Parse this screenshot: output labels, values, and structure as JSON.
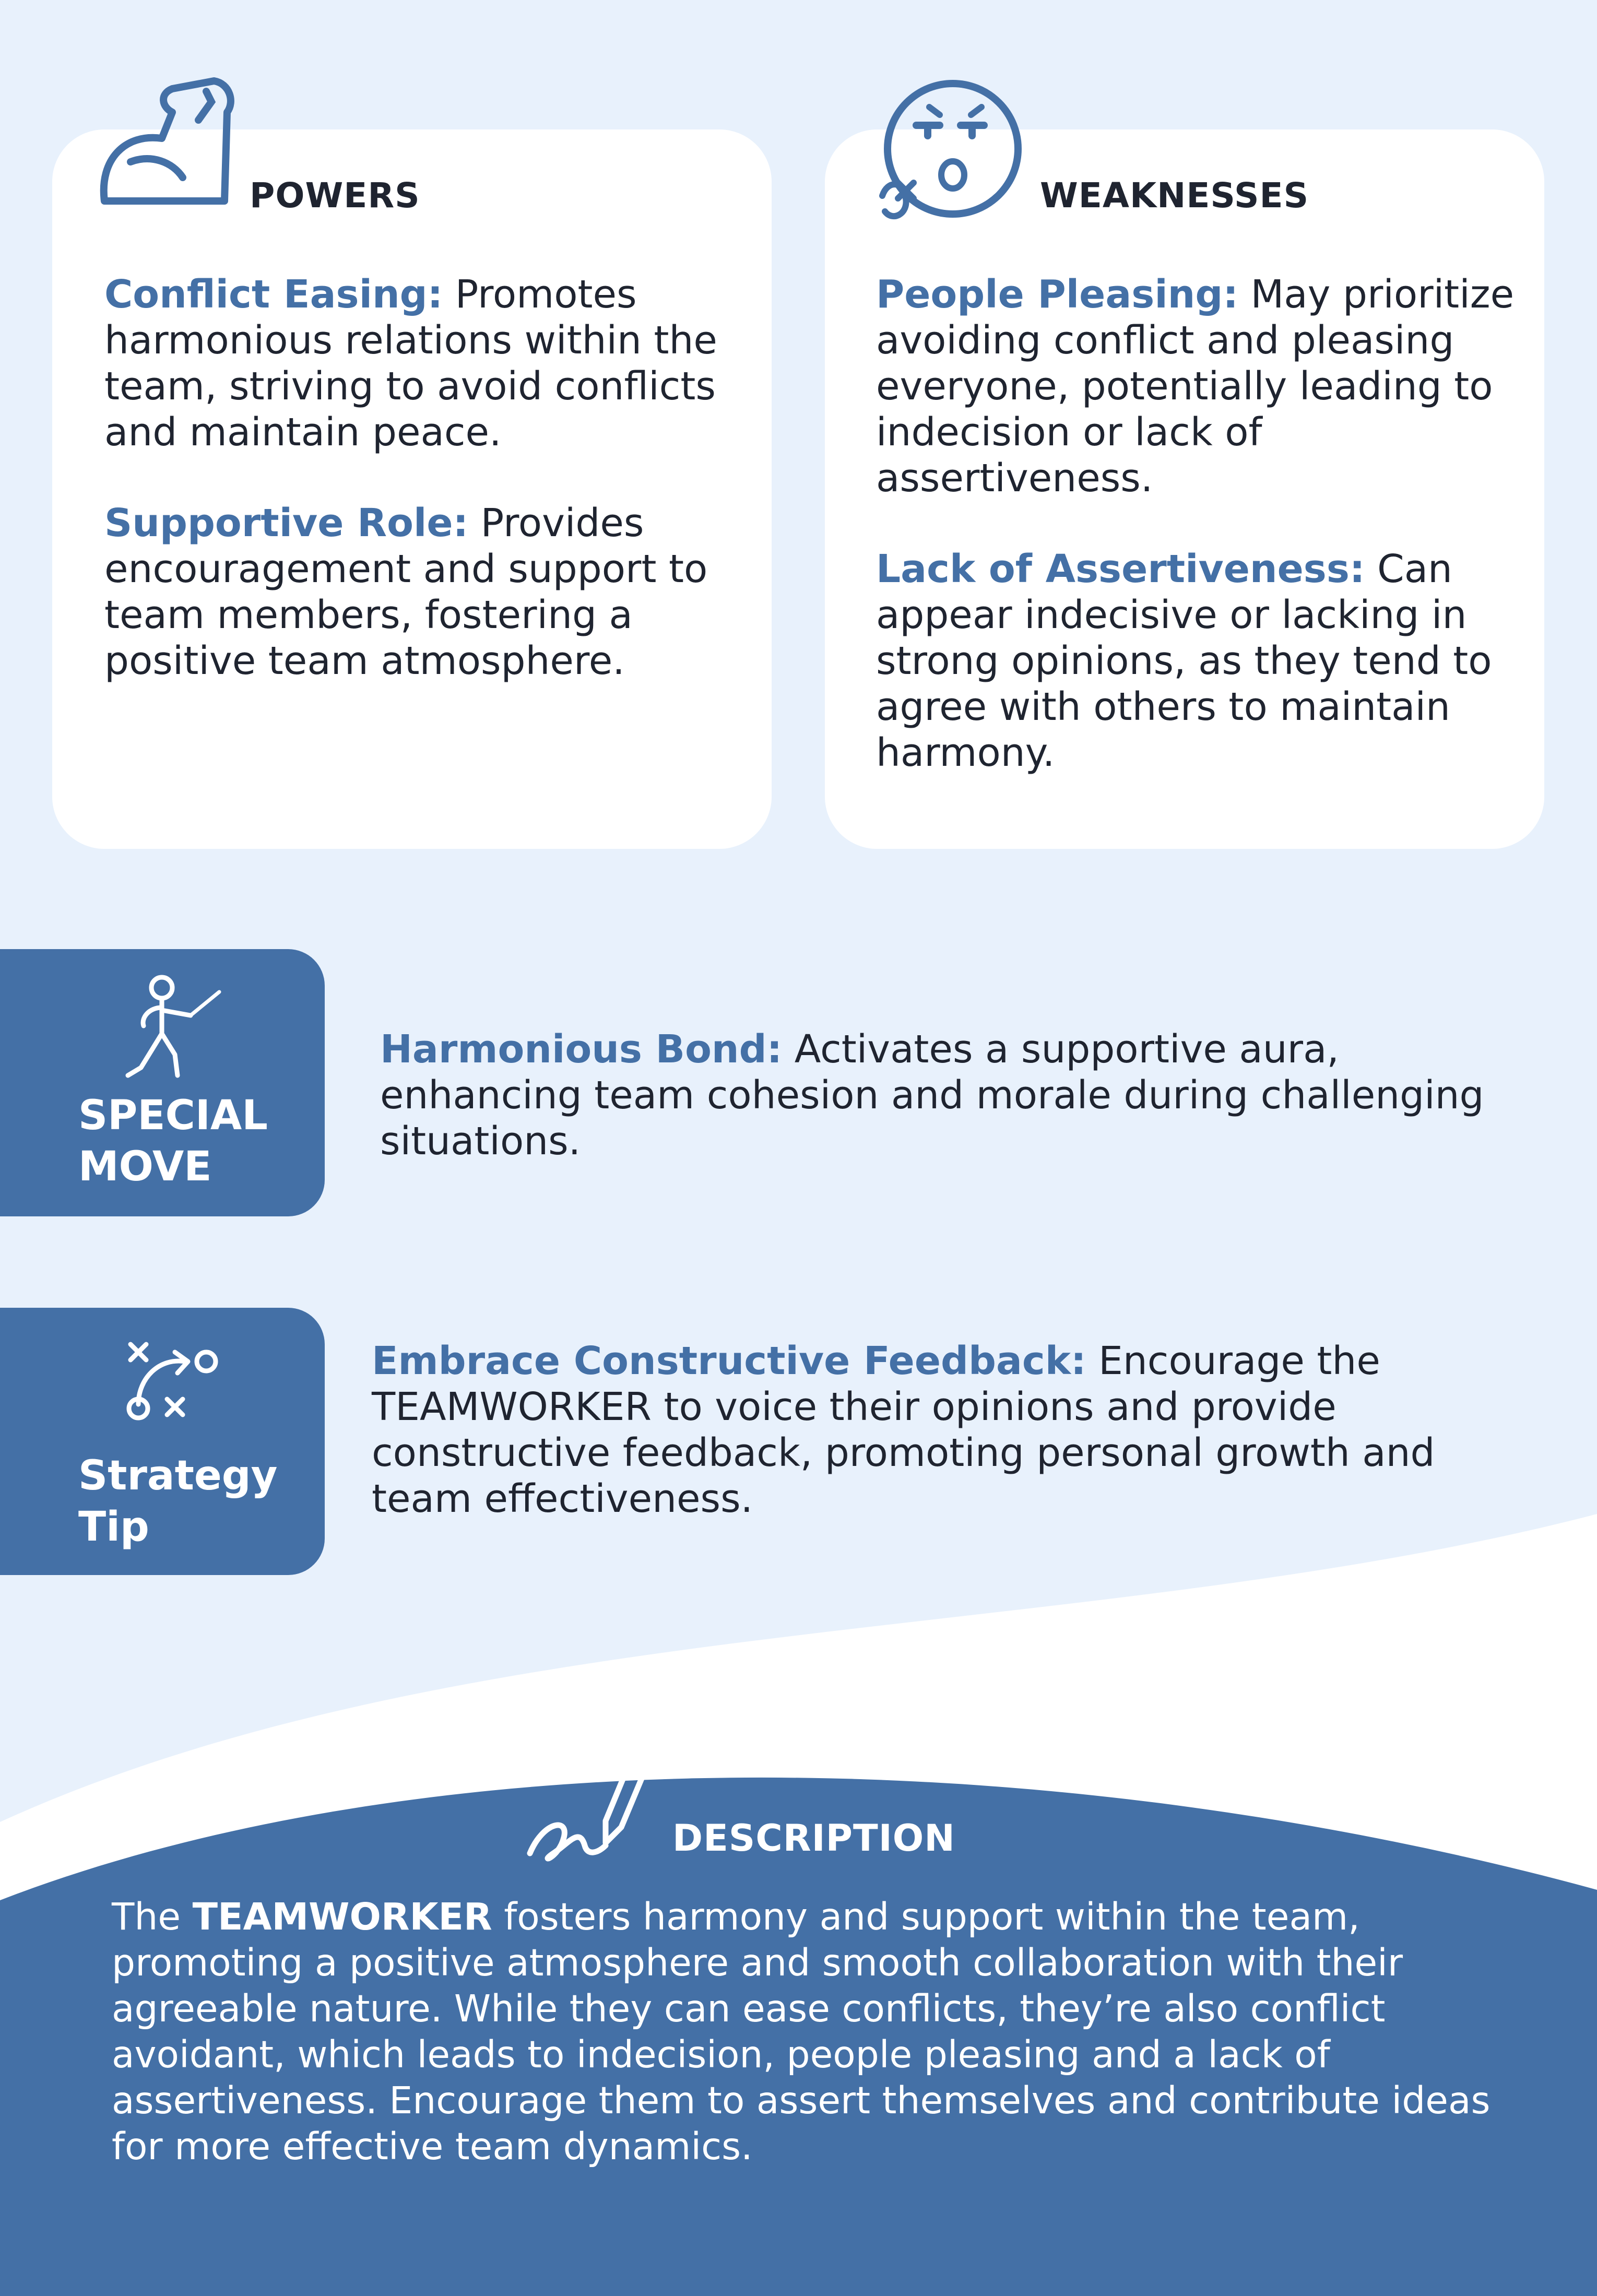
{
  "powers": {
    "title": "POWERS",
    "icon": "flexed-arm-icon",
    "items": [
      {
        "term": "Conflict Easing:",
        "text": " Promotes harmonious relations within the team, striving to avoid conflicts and maintain peace."
      },
      {
        "term": "Supportive Role:",
        "text": " Provides encouragement and support to team members, fostering a positive team atmosphere."
      }
    ]
  },
  "weaknesses": {
    "title": "WEAKNESSES",
    "icon": "anxious-face-icon",
    "items": [
      {
        "term": "People Pleasing:",
        "text": " May prioritize avoiding conflict and pleasing everyone, potentially leading to indecision or lack of assertiveness."
      },
      {
        "term": "Lack of Assertiveness:",
        "text": " Can appear indecisive or lacking in strong opinions, as they tend to agree with others to maintain harmony."
      }
    ]
  },
  "special_move": {
    "label_line1": "SPECIAL",
    "label_line2": "MOVE",
    "icon": "fencer-icon",
    "term": "Harmonious Bond:",
    "text": "  Activates a supportive aura, enhancing team cohesion and morale during challenging situations."
  },
  "strategy_tip": {
    "label_line1": "Strategy",
    "label_line2": "Tip",
    "icon": "strategy-play-icon",
    "term": "Embrace Constructive Feedback:",
    "text": " Encourage the TEAMWORKER to voice their opinions and provide constructive feedback, promoting personal growth and team effectiveness."
  },
  "description": {
    "title": "DESCRIPTION",
    "icon": "pen-signature-icon",
    "prefix": "The ",
    "highlight": "TEAMWORKER",
    "text": " fosters harmony and support within the team, promoting a positive atmosphere and smooth collaboration with their agreeable nature. While they can ease conflicts, they’re also conflict avoidant, which leads to indecision, people pleasing and a lack of assertiveness. Encourage them to assert themselves and contribute ideas for more effective team dynamics."
  },
  "colors": {
    "accent": "#4470a6",
    "background": "#e8f1fc",
    "card": "#ffffff",
    "text": "#1f2430"
  }
}
